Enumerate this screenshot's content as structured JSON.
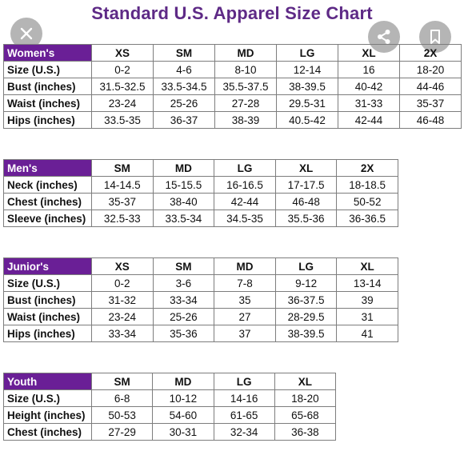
{
  "title": "Standard U.S. Apparel Size Chart",
  "overlay": {
    "close_icon": "close-icon",
    "share_icon": "share-icon",
    "save_icon": "bookmark-icon"
  },
  "colors": {
    "title": "#5e2a86",
    "header_band": "#6a1f96"
  },
  "womens": {
    "label": "Women's",
    "sizes": [
      "XS",
      "SM",
      "MD",
      "LG",
      "XL",
      "2X"
    ],
    "rows": [
      {
        "label": "Size (U.S.)",
        "values": [
          "0-2",
          "4-6",
          "8-10",
          "12-14",
          "16",
          "18-20"
        ]
      },
      {
        "label": "Bust (inches)",
        "values": [
          "31.5-32.5",
          "33.5-34.5",
          "35.5-37.5",
          "38-39.5",
          "40-42",
          "44-46"
        ]
      },
      {
        "label": "Waist (inches)",
        "values": [
          "23-24",
          "25-26",
          "27-28",
          "29.5-31",
          "31-33",
          "35-37"
        ]
      },
      {
        "label": "Hips (inches)",
        "values": [
          "33.5-35",
          "36-37",
          "38-39",
          "40.5-42",
          "42-44",
          "46-48"
        ]
      }
    ]
  },
  "mens": {
    "label": "Men's",
    "sizes": [
      "SM",
      "MD",
      "LG",
      "XL",
      "2X"
    ],
    "rows": [
      {
        "label": "Neck (inches)",
        "values": [
          "14-14.5",
          "15-15.5",
          "16-16.5",
          "17-17.5",
          "18-18.5"
        ]
      },
      {
        "label": "Chest (inches)",
        "values": [
          "35-37",
          "38-40",
          "42-44",
          "46-48",
          "50-52"
        ]
      },
      {
        "label": "Sleeve (inches)",
        "values": [
          "32.5-33",
          "33.5-34",
          "34.5-35",
          "35.5-36",
          "36-36.5"
        ]
      }
    ]
  },
  "juniors": {
    "label": "Junior's",
    "sizes": [
      "XS",
      "SM",
      "MD",
      "LG",
      "XL"
    ],
    "rows": [
      {
        "label": "Size (U.S.)",
        "values": [
          "0-2",
          "3-6",
          "7-8",
          "9-12",
          "13-14"
        ]
      },
      {
        "label": "Bust (inches)",
        "values": [
          "31-32",
          "33-34",
          "35",
          "36-37.5",
          "39"
        ]
      },
      {
        "label": "Waist (inches)",
        "values": [
          "23-24",
          "25-26",
          "27",
          "28-29.5",
          "31"
        ]
      },
      {
        "label": "Hips (inches)",
        "values": [
          "33-34",
          "35-36",
          "37",
          "38-39.5",
          "41"
        ]
      }
    ]
  },
  "youth": {
    "label": "Youth",
    "sizes": [
      "SM",
      "MD",
      "LG",
      "XL"
    ],
    "rows": [
      {
        "label": "Size (U.S.)",
        "values": [
          "6-8",
          "10-12",
          "14-16",
          "18-20"
        ]
      },
      {
        "label": "Height (inches)",
        "values": [
          "50-53",
          "54-60",
          "61-65",
          "65-68"
        ]
      },
      {
        "label": "Chest (inches)",
        "values": [
          "27-29",
          "30-31",
          "32-34",
          "36-38"
        ]
      }
    ]
  }
}
